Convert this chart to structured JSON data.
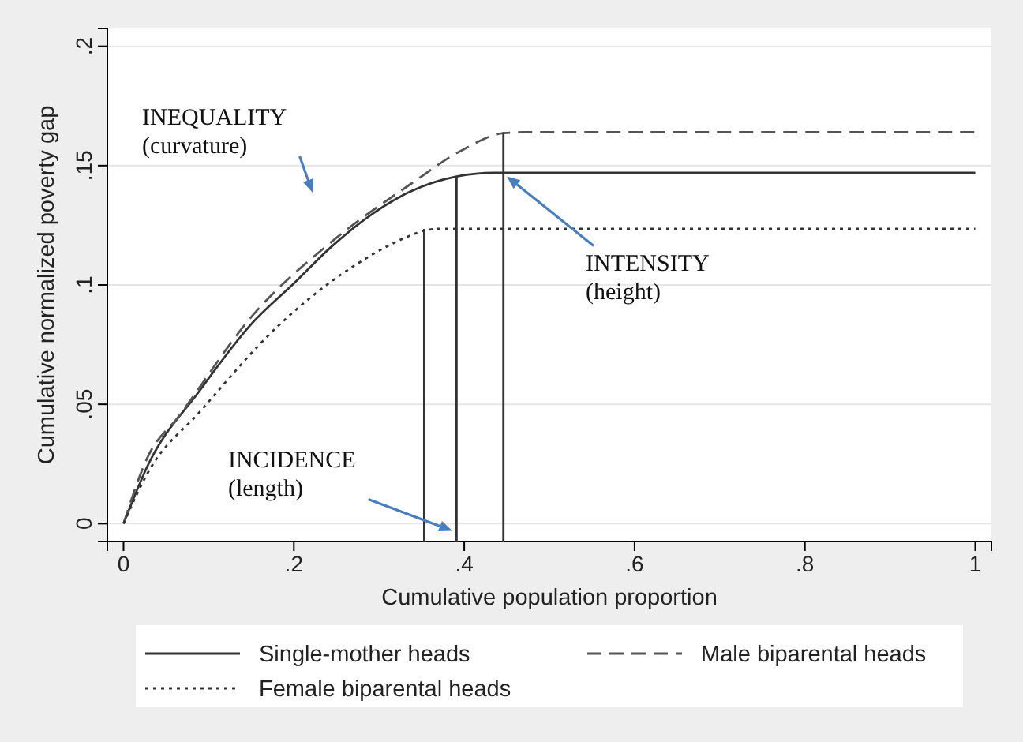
{
  "chart_data": {
    "type": "line",
    "xlabel": "Cumulative population proportion",
    "ylabel": "Cumulative normalized poverty gap",
    "xlim": [
      -0.019,
      1.019
    ],
    "ylim": [
      -0.0075,
      0.2075
    ],
    "xticks": [
      0,
      {
        "value": 0.2,
        "label": ".2"
      },
      {
        "value": 0.4,
        "label": ".4"
      },
      {
        "value": 0.6,
        "label": ".6"
      },
      {
        "value": 0.8,
        "label": ".8"
      },
      1
    ],
    "yticks": [
      0,
      {
        "value": 0.05,
        "label": ".05"
      },
      {
        "value": 0.1,
        "label": ".1"
      },
      {
        "value": 0.15,
        "label": ".15"
      },
      {
        "value": 0.2,
        "label": ".2"
      }
    ],
    "grid": "y",
    "legend": "bottom",
    "marker": "none",
    "series": [
      {
        "name": "Single-mother heads",
        "color": "#333333",
        "line_style": "solid",
        "x": [
          0,
          0.028,
          0.09,
          0.151,
          0.201,
          0.244,
          0.293,
          0.336,
          0.392,
          0.435,
          0.45,
          1
        ],
        "values": [
          0,
          0.024,
          0.056,
          0.084,
          0.101,
          0.116,
          0.13,
          0.139,
          0.1455,
          0.147,
          0.147,
          0.147
        ]
      },
      {
        "name": "Male biparental heads",
        "color": "#555555",
        "line_style": "dashed",
        "x": [
          0,
          0.028,
          0.065,
          0.151,
          0.244,
          0.336,
          0.398,
          0.446,
          0.47,
          1
        ],
        "values": [
          0,
          0.0276,
          0.045,
          0.087,
          0.118,
          0.142,
          0.1566,
          0.1636,
          0.164,
          0.164
        ]
      },
      {
        "name": "Female biparental heads",
        "color": "#333333",
        "line_style": "dotted",
        "x": [
          0,
          0.028,
          0.09,
          0.182,
          0.275,
          0.336,
          0.353,
          0.37,
          1
        ],
        "values": [
          0,
          0.021,
          0.047,
          0.083,
          0.109,
          0.1206,
          0.1228,
          0.1235,
          0.1235
        ]
      },
      {
        "color": "#333333",
        "line_style": "solid",
        "x": [
          0.353,
          0.353
        ],
        "values": [
          -0.0075,
          0.1235
        ]
      },
      {
        "color": "#333333",
        "line_style": "solid",
        "x": [
          0.391,
          0.391
        ],
        "values": [
          -0.0075,
          0.1455
        ]
      },
      {
        "color": "#333333",
        "line_style": "solid",
        "x": [
          0.446,
          0.446
        ],
        "values": [
          -0.0075,
          0.164
        ]
      }
    ],
    "annotations": [
      "INEQUALITY\n(curvature)",
      {
        "text": "INTENSITY\n(height)",
        "x": 0.45,
        "y": 0.1455
      },
      {
        "text": "INCIDENCE\n(length)",
        "x": 0.386,
        "y": -0.003
      }
    ]
  }
}
